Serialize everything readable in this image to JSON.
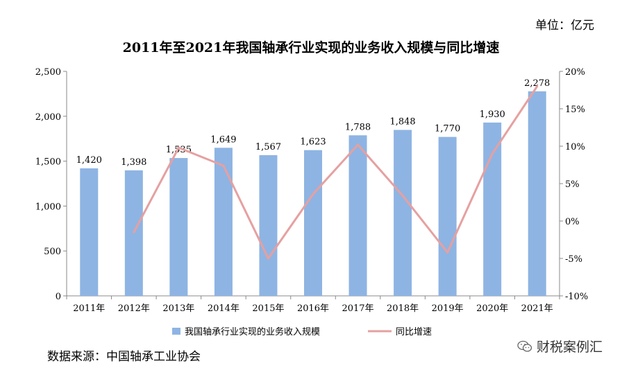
{
  "header": {
    "unit": "单位：亿元",
    "title": "2011年至2021年我国轴承行业实现的业务收入规模与同比增速"
  },
  "footer": {
    "source": "数据来源：中国轴承工业协会",
    "watermark": "财税案例汇",
    "watermark_icon": "wechat-icon"
  },
  "chart_data": {
    "type": "bar",
    "title": "2011年至2021年我国轴承行业实现的业务收入规模与同比增速",
    "categories": [
      "2011年",
      "2012年",
      "2013年",
      "2014年",
      "2015年",
      "2016年",
      "2017年",
      "2018年",
      "2019年",
      "2020年",
      "2021年"
    ],
    "bar_labels": [
      "1,420",
      "1,398",
      "1,535",
      "1,649",
      "1,567",
      "1,623",
      "1,788",
      "1,848",
      "1,770",
      "1,930",
      "2,278"
    ],
    "series": [
      {
        "name": "我国轴承行业实现的业务收入规模",
        "type": "bar",
        "axis": "left",
        "color": "#8eb4e3",
        "values": [
          1420,
          1398,
          1535,
          1649,
          1567,
          1623,
          1788,
          1848,
          1770,
          1930,
          2278
        ]
      },
      {
        "name": "同比增速",
        "type": "line",
        "axis": "right",
        "color": "#e6a0a0",
        "values": [
          null,
          -1.5,
          9.8,
          7.4,
          -5.0,
          3.6,
          10.2,
          3.4,
          -4.2,
          9.0,
          18.0
        ]
      }
    ],
    "y_left": {
      "ylim": [
        0,
        2500
      ],
      "ticks": [
        0,
        500,
        1000,
        1500,
        2000,
        2500
      ],
      "tick_labels": [
        "0",
        "500",
        "1,000",
        "1,500",
        "2,000",
        "2,500"
      ]
    },
    "y_right": {
      "ylim": [
        -10,
        20
      ],
      "ticks": [
        -10,
        -5,
        0,
        5,
        10,
        15,
        20
      ],
      "tick_labels": [
        "-10%",
        "-5%",
        "0%",
        "5%",
        "10%",
        "15%",
        "20%"
      ]
    },
    "grid": false,
    "legend_position": "bottom"
  }
}
